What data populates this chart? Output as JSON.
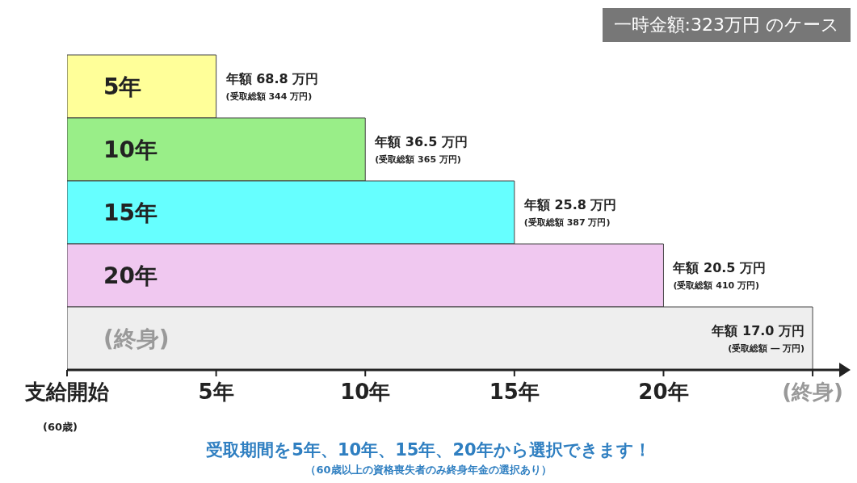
{
  "chart_data": {
    "type": "bar",
    "orientation": "horizontal",
    "categories": [
      "5年",
      "10年",
      "15年",
      "20年",
      "(終身)"
    ],
    "values": [
      5,
      10,
      15,
      20,
      25
    ],
    "colors": [
      "#ffff99",
      "#99ee88",
      "#66ffff",
      "#f0c8f0",
      "#eeeeee"
    ],
    "xlim": [
      0,
      26
    ],
    "xticks": [
      {
        "value": 0,
        "label": "支給開始"
      },
      {
        "value": 5,
        "label": "5年"
      },
      {
        "value": 10,
        "label": "10年"
      },
      {
        "value": 15,
        "label": "15年"
      },
      {
        "value": 20,
        "label": "20年"
      },
      {
        "value": 25,
        "label": "(終身)"
      }
    ],
    "value_labels": [
      "年額 68.8 万円\n(受取総額 344 万円)",
      "年額 36.5 万円\n(受取総額 365 万円)",
      "年額 25.8 万円\n(受取総額 387 万円)",
      "年額 20.5 万円\n(受取総額 410 万円)",
      "年額 17.0 万円\n(受取総額 ― 万円)"
    ],
    "annotations": [
      "一時金額:323万円 のケース",
      "(60歳)",
      "受取期間を5年、10年、15年、20年から選択できます！",
      "（60歳以上の資格喪失者のみ終身年金の選択あり）"
    ],
    "grid": false,
    "legend": false
  }
}
